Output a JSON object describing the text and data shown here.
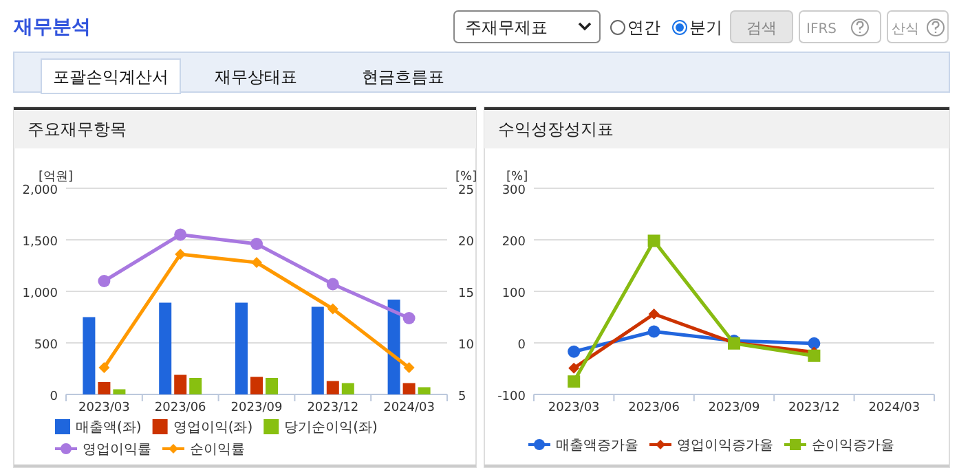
{
  "chart_data": [
    {
      "type": "bar",
      "title": "주요재무항목",
      "annotations": [
        "재무분석",
        "주재무제표",
        "연간",
        "분기",
        "검색",
        "IFRS",
        "산식",
        "포괄손익계산서",
        "재무상태표",
        "현금흐름표"
      ],
      "categories": [
        "2023/03",
        "2023/06",
        "2023/09",
        "2023/12",
        "2024/03"
      ],
      "ylabel": "[억원]",
      "y2label": "[%]",
      "ylim": [
        0,
        2000
      ],
      "yticks": [
        0,
        {
          "value": 500,
          "label": "500"
        },
        {
          "value": 1000,
          "label": "1,000"
        },
        {
          "value": 1500,
          "label": "1,500"
        },
        {
          "value": 2000,
          "label": "2,000"
        }
      ],
      "y2lim": [
        5,
        25
      ],
      "y2ticks": [
        5,
        10,
        15,
        20,
        25
      ],
      "grid": "y",
      "legend": "bottom",
      "series": [
        {
          "name": "매출액(좌)",
          "color": "#1f66dd",
          "values": [
            750,
            890,
            890,
            850,
            920
          ]
        },
        {
          "name": "영업이익(좌)",
          "color": "#cc3300",
          "values": [
            120,
            190,
            170,
            130,
            110
          ]
        },
        {
          "name": "당기순이익(좌)",
          "color": "#88c010",
          "values": [
            50,
            160,
            160,
            110,
            70
          ]
        },
        {
          "name": "영업이익률",
          "type": "line",
          "axis": "y2",
          "marker": "circle",
          "color": "#a878e0",
          "values": [
            16.0,
            20.5,
            19.6,
            15.7,
            12.4
          ]
        },
        {
          "name": "순이익률",
          "type": "line",
          "axis": "y2",
          "marker": "diamond",
          "color": "#ff9900",
          "values": [
            7.6,
            18.6,
            17.8,
            13.3,
            7.6
          ]
        }
      ]
    },
    {
      "type": "line",
      "title": "수익성장성지표",
      "categories": [
        "2023/03",
        "2023/06",
        "2023/09",
        "2023/12",
        "2024/03"
      ],
      "ylabel": "[%]",
      "ylim": [
        -100,
        300
      ],
      "yticks": [
        -100,
        0,
        100,
        200,
        300
      ],
      "grid": "y",
      "legend": "bottom",
      "series": [
        {
          "name": "매출액증가율",
          "color": "#2266dd",
          "marker": "circle",
          "values": [
            -17,
            22,
            4,
            -1,
            null
          ]
        },
        {
          "name": "영업이익증가율",
          "color": "#cc3300",
          "marker": "diamond",
          "values": [
            -49,
            56,
            0,
            -18,
            null
          ]
        },
        {
          "name": "순이익증가율",
          "color": "#88bb11",
          "marker": "square",
          "values": [
            -75,
            198,
            -1,
            -25,
            null
          ]
        }
      ]
    }
  ]
}
